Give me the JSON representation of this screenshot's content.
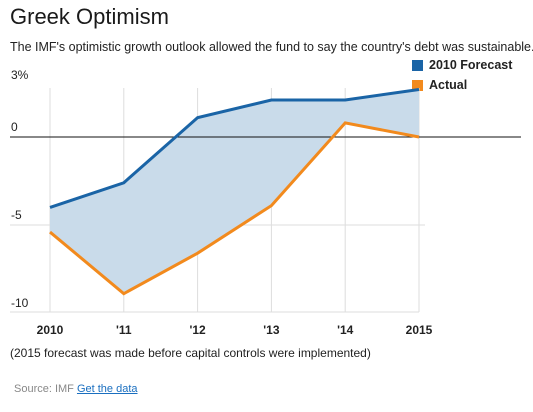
{
  "header": {
    "title": "Greek Optimism",
    "subtitle": "The IMF's optimistic growth outlook allowed the fund to say the country's debt was sustainable."
  },
  "colors": {
    "forecast": "#1a64a6",
    "actual": "#f28a1d",
    "fill": "#c9dbea",
    "zero_line": "#111111",
    "grid": "#dddddd"
  },
  "chart_data": {
    "type": "line",
    "categories": [
      "2010",
      "'11",
      "'12",
      "'13",
      "'14",
      "2015"
    ],
    "series": [
      {
        "name": "2010 Forecast",
        "values": [
          -4.0,
          -2.6,
          1.1,
          2.1,
          2.1,
          2.7
        ]
      },
      {
        "name": "Actual",
        "values": [
          -5.4,
          -8.9,
          -6.6,
          -3.9,
          0.8,
          0.0
        ]
      }
    ],
    "y_ticks": [
      {
        "value": 3,
        "label": "3%"
      },
      {
        "value": 0,
        "label": "0"
      },
      {
        "value": -5,
        "label": "-5"
      },
      {
        "value": -10,
        "label": "-10"
      }
    ],
    "ylim": [
      -10,
      3
    ],
    "legend_position": "top-right",
    "area_between_series": true,
    "grid": "vertical"
  },
  "footer": {
    "note": "(2015 forecast was made before capital controls were implemented)",
    "source_label": "Source: IMF",
    "source_link": "Get the data"
  }
}
